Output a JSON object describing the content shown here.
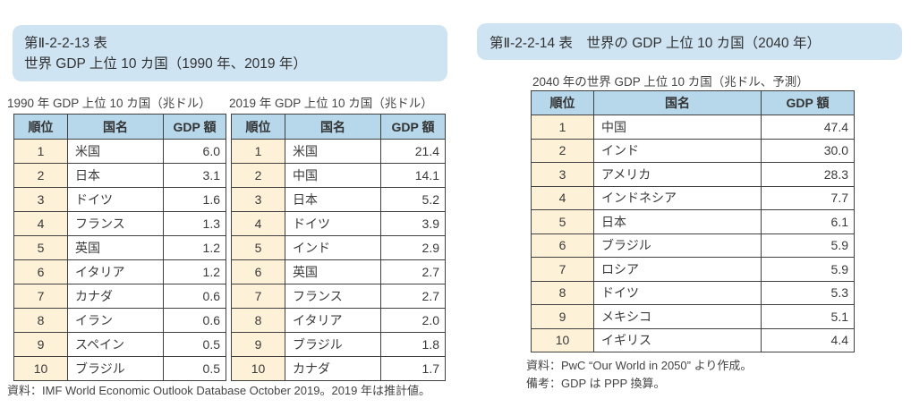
{
  "colors": {
    "banner_bg": "#cfe4f2",
    "table_header_bg": "#b7d8ea",
    "rank_column_bg": "#fdf1d8",
    "table_border": "#404040",
    "text": "#3a3a3a"
  },
  "figure13": {
    "banner_line1": "第Ⅱ-2-2-13 表",
    "banner_line2": "世界 GDP 上位 10 カ国（1990 年、2019 年）",
    "tables": [
      {
        "subtitle": "1990 年 GDP 上位 10 カ国（兆ドル）",
        "headers": [
          "順位",
          "国名",
          "GDP 額"
        ],
        "rows": [
          [
            "1",
            "米国",
            "6.0"
          ],
          [
            "2",
            "日本",
            "3.1"
          ],
          [
            "3",
            "ドイツ",
            "1.6"
          ],
          [
            "4",
            "フランス",
            "1.3"
          ],
          [
            "5",
            "英国",
            "1.2"
          ],
          [
            "6",
            "イタリア",
            "1.2"
          ],
          [
            "7",
            "カナダ",
            "0.6"
          ],
          [
            "8",
            "イラン",
            "0.6"
          ],
          [
            "9",
            "スペイン",
            "0.5"
          ],
          [
            "10",
            "ブラジル",
            "0.5"
          ]
        ]
      },
      {
        "subtitle": "2019 年 GDP 上位 10 カ国（兆ドル）",
        "headers": [
          "順位",
          "国名",
          "GDP 額"
        ],
        "rows": [
          [
            "1",
            "米国",
            "21.4"
          ],
          [
            "2",
            "中国",
            "14.1"
          ],
          [
            "3",
            "日本",
            "5.2"
          ],
          [
            "4",
            "ドイツ",
            "3.9"
          ],
          [
            "5",
            "インド",
            "2.9"
          ],
          [
            "6",
            "英国",
            "2.7"
          ],
          [
            "7",
            "フランス",
            "2.7"
          ],
          [
            "8",
            "イタリア",
            "2.0"
          ],
          [
            "9",
            "ブラジル",
            "1.8"
          ],
          [
            "10",
            "カナダ",
            "1.7"
          ]
        ]
      }
    ],
    "source": "資料：IMF World Economic Outlook Database October 2019。2019 年は推計値。"
  },
  "figure14": {
    "banner": "第Ⅱ-2-2-14 表　世界の GDP 上位 10 カ国（2040 年）",
    "subtitle": "2040 年の世界 GDP 上位 10 カ国（兆ドル、予測）",
    "headers": [
      "順位",
      "国名",
      "GDP 額"
    ],
    "rows": [
      [
        "1",
        "中国",
        "47.4"
      ],
      [
        "2",
        "インド",
        "30.0"
      ],
      [
        "3",
        "アメリカ",
        "28.3"
      ],
      [
        "4",
        "インドネシア",
        "7.7"
      ],
      [
        "5",
        "日本",
        "6.1"
      ],
      [
        "6",
        "ブラジル",
        "5.9"
      ],
      [
        "7",
        "ロシア",
        "5.9"
      ],
      [
        "8",
        "ドイツ",
        "5.3"
      ],
      [
        "9",
        "メキシコ",
        "5.1"
      ],
      [
        "10",
        "イギリス",
        "4.4"
      ]
    ],
    "source": "資料：PwC “Our World in 2050” より作成。",
    "remark": "備考：GDP は PPP 換算。"
  }
}
